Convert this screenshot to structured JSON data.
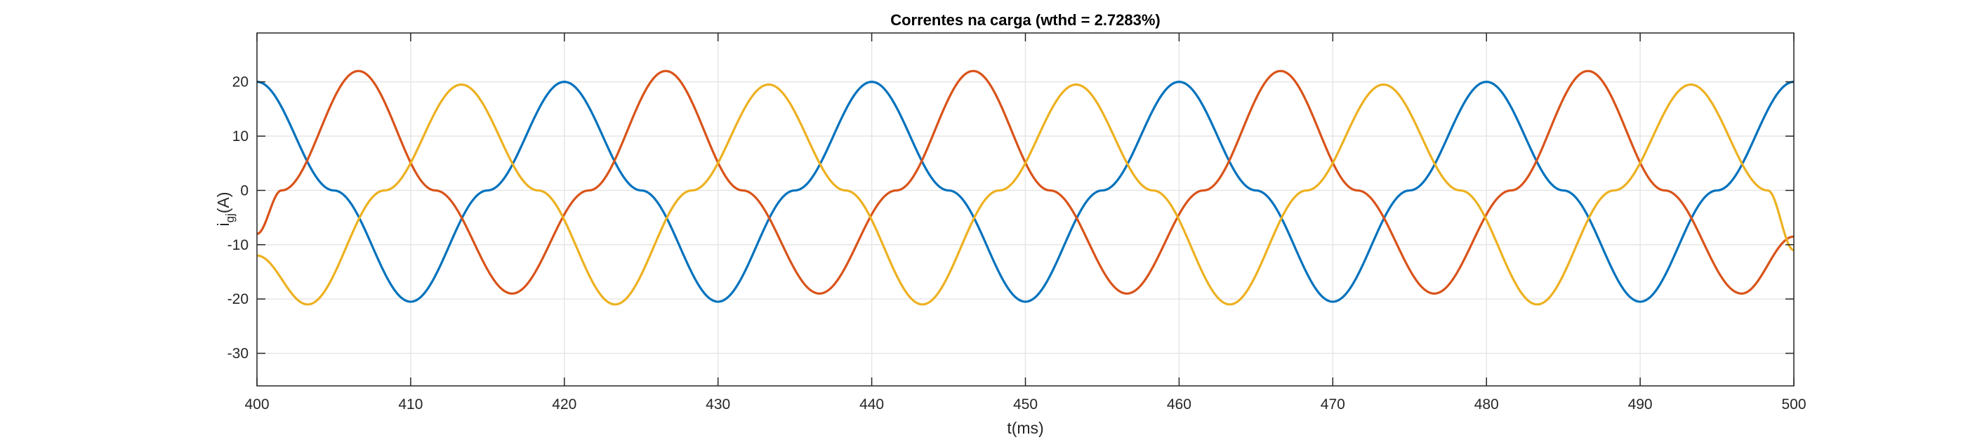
{
  "chart_data": {
    "type": "line",
    "title": "Correntes na carga (wthd = 2.7283%)",
    "xlabel": "t(ms)",
    "ylabel": {
      "main": "i",
      "subscript": "gj",
      "suffix": "(A)"
    },
    "xlim": [
      400,
      500
    ],
    "ylim": [
      -36,
      29
    ],
    "xticks": [
      400,
      410,
      420,
      430,
      440,
      450,
      460,
      470,
      480,
      490,
      500
    ],
    "yticks": [
      -30,
      -20,
      -10,
      0,
      10,
      20
    ],
    "grid": true,
    "legend": "none",
    "series": [
      {
        "color": "#0072BD",
        "x": [
          400,
          405,
          410,
          415,
          420,
          425,
          430,
          435,
          440,
          445,
          450,
          455,
          460,
          465,
          470,
          475,
          480,
          485,
          490,
          495,
          500
        ],
        "y": [
          20,
          0,
          -20.5,
          0,
          20,
          0,
          -20.5,
          0,
          20,
          0,
          -20.5,
          0,
          20,
          0,
          -20.5,
          0,
          20,
          0,
          -20.5,
          0,
          20
        ]
      },
      {
        "color": "#D95319",
        "x": [
          400,
          401.6,
          406.6,
          411.6,
          416.6,
          421.6,
          426.6,
          431.6,
          436.6,
          441.6,
          446.6,
          451.6,
          456.6,
          461.6,
          466.6,
          471.6,
          476.6,
          481.6,
          486.6,
          491.6,
          496.6,
          500
        ],
        "y": [
          -8,
          0,
          22,
          0,
          -19,
          0,
          22,
          0,
          -19,
          0,
          22,
          0,
          -19,
          0,
          22,
          0,
          -19,
          0,
          22,
          0,
          -19,
          -8.5
        ]
      },
      {
        "color": "#EDB120",
        "x": [
          400,
          403.3,
          408.3,
          413.3,
          418.3,
          423.3,
          428.3,
          433.3,
          438.3,
          443.3,
          448.3,
          453.3,
          458.3,
          463.3,
          468.3,
          473.3,
          478.3,
          483.3,
          488.3,
          493.3,
          498.3,
          500
        ],
        "y": [
          -12,
          -21,
          0,
          19.5,
          0,
          -21,
          0,
          19.5,
          0,
          -21,
          0,
          19.5,
          0,
          -21,
          0,
          19.5,
          0,
          -21,
          0,
          19.5,
          0,
          -11
        ]
      }
    ]
  }
}
